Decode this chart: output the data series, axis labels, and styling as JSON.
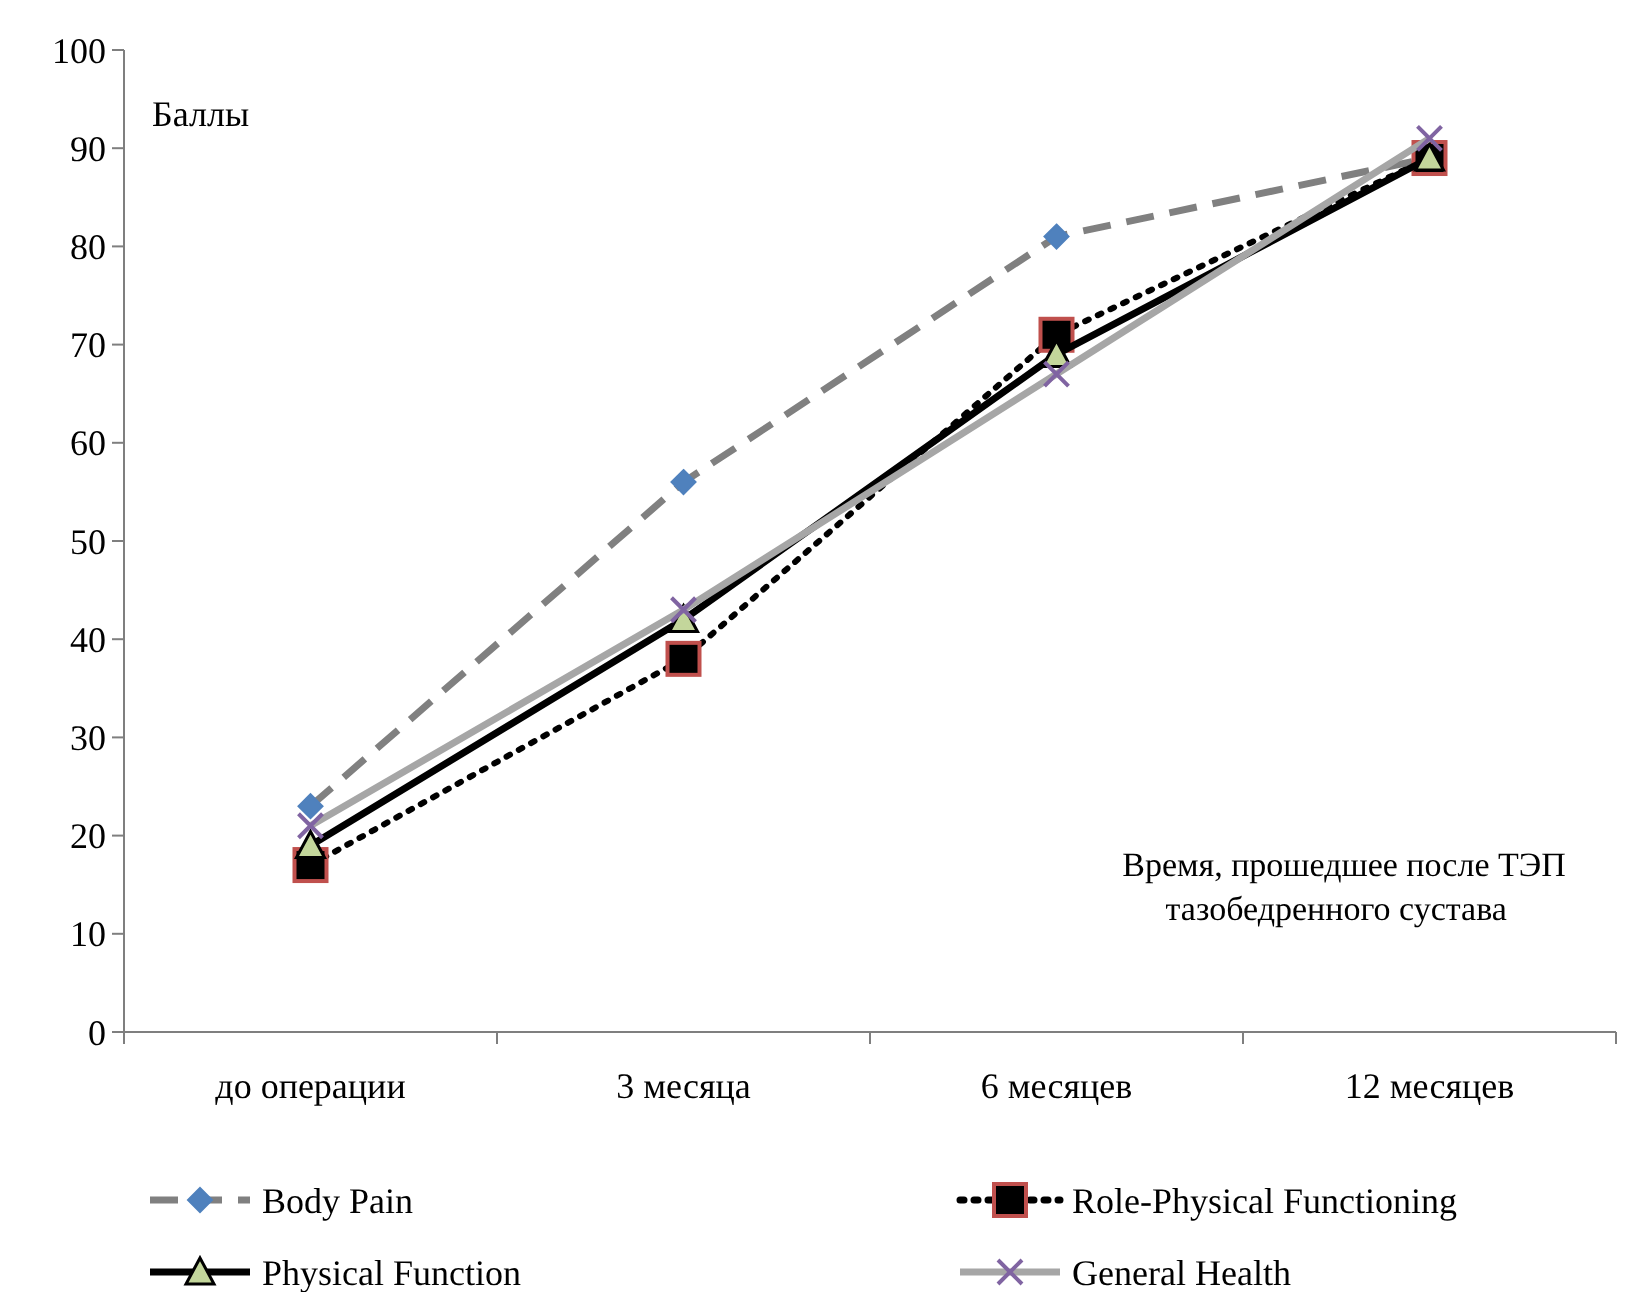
{
  "chart_data": {
    "type": "line",
    "ylabel": "Баллы",
    "xlabel": "Время, прошедшее после ТЭП\n тазобедренного сустава",
    "categories": [
      "до операции",
      "3 месяца",
      "6 месяцев",
      "12 месяцев"
    ],
    "ylim": [
      0,
      100
    ],
    "yticks": [
      0,
      10,
      20,
      30,
      40,
      50,
      60,
      70,
      80,
      90,
      100
    ],
    "grid": false,
    "legend": "bottom",
    "series": [
      {
        "name": "Body Pain",
        "color": "#808080",
        "line_style": "dashed",
        "marker": "diamond",
        "values": [
          23,
          56,
          81,
          89
        ]
      },
      {
        "name": "Role-Physical Functioning",
        "color": "#000000",
        "line_style": "dotted",
        "marker": "square",
        "values": [
          17,
          38,
          71,
          89
        ]
      },
      {
        "name": "Physical Function",
        "color": "#000000",
        "line_style": "solid",
        "marker": "triangle",
        "values": [
          19,
          42,
          69,
          89
        ]
      },
      {
        "name": "General Health",
        "color": "#a6a6a6",
        "line_style": "solid",
        "marker": "cross",
        "values": [
          21,
          43,
          67,
          91
        ]
      }
    ]
  }
}
